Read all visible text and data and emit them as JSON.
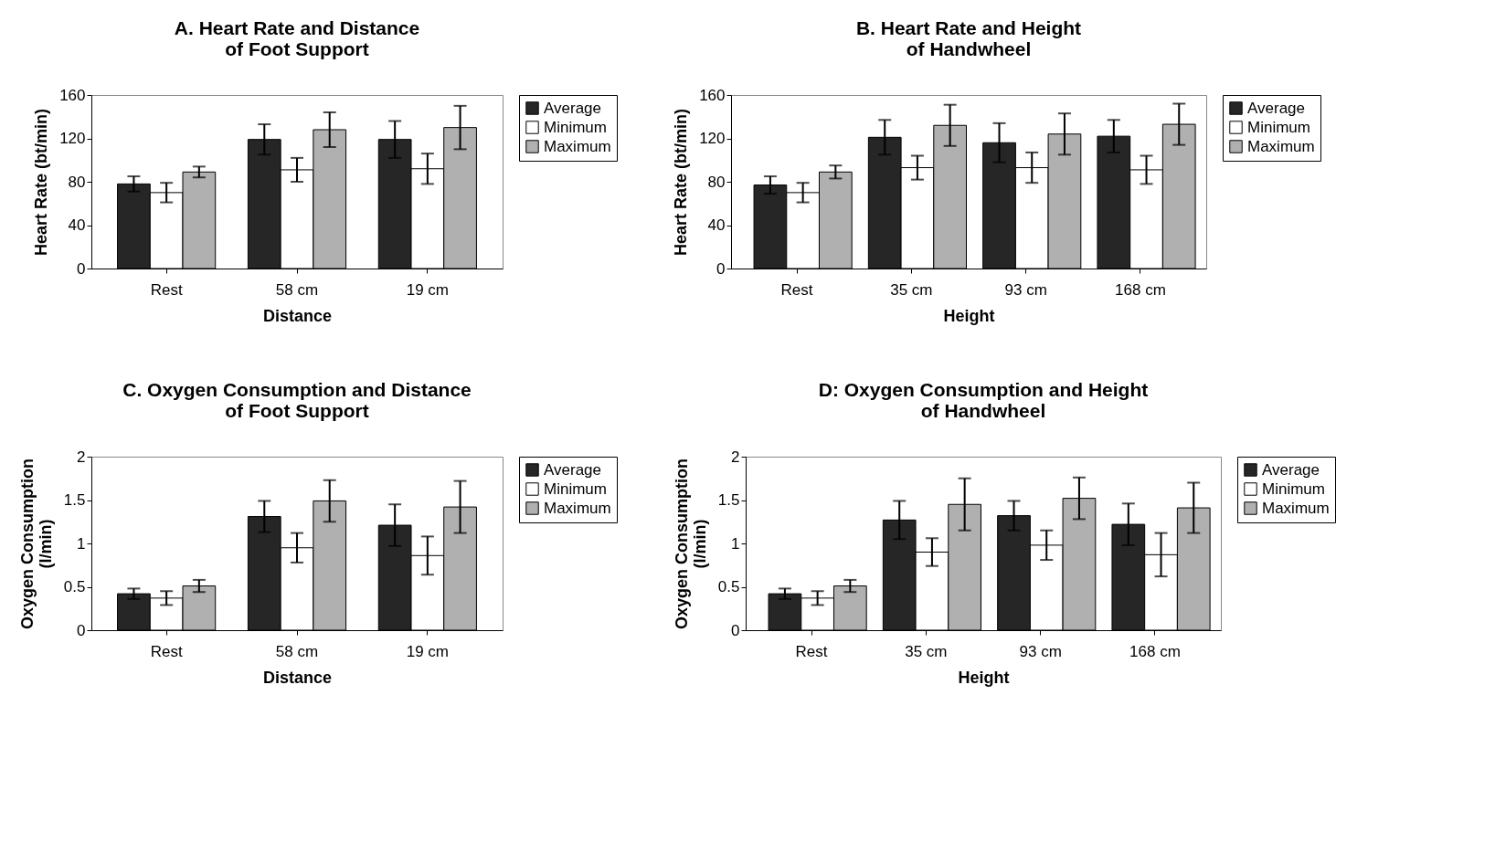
{
  "chart_data": [
    {
      "type": "bar",
      "title": "A. Heart Rate and Distance\nof Foot Support",
      "xlabel": "Distance",
      "ylabel": "Heart Rate (bt/min)",
      "categories": [
        "Rest",
        "58 cm",
        "19 cm"
      ],
      "ylim": [
        0,
        160
      ],
      "yticks": [
        0,
        40,
        80,
        120,
        160
      ],
      "legend": "right",
      "grid": false,
      "series": [
        {
          "name": "Average",
          "color": "#262626",
          "values": [
            78,
            119,
            119
          ],
          "errors": [
            7,
            14,
            17
          ]
        },
        {
          "name": "Minimum",
          "color": "#ffffff",
          "values": [
            70,
            91,
            92
          ],
          "errors": [
            9,
            11,
            14
          ]
        },
        {
          "name": "Maximum",
          "color": "#b0b0b0",
          "values": [
            89,
            128,
            130
          ],
          "errors": [
            5,
            16,
            20
          ]
        }
      ]
    },
    {
      "type": "bar",
      "title": "B. Heart Rate and Height\nof Handwheel",
      "xlabel": "Height",
      "ylabel": "Heart Rate (bt/min)",
      "categories": [
        "Rest",
        "35 cm",
        "93 cm",
        "168 cm"
      ],
      "ylim": [
        0,
        160
      ],
      "yticks": [
        0,
        40,
        80,
        120,
        160
      ],
      "legend": "right",
      "grid": false,
      "series": [
        {
          "name": "Average",
          "color": "#262626",
          "values": [
            77,
            121,
            116,
            122
          ],
          "errors": [
            8,
            16,
            18,
            15
          ]
        },
        {
          "name": "Minimum",
          "color": "#ffffff",
          "values": [
            70,
            93,
            93,
            91
          ],
          "errors": [
            9,
            11,
            14,
            13
          ]
        },
        {
          "name": "Maximum",
          "color": "#b0b0b0",
          "values": [
            89,
            132,
            124,
            133
          ],
          "errors": [
            6,
            19,
            19,
            19
          ]
        }
      ]
    },
    {
      "type": "bar",
      "title": "C. Oxygen Consumption and Distance\nof Foot Support",
      "xlabel": "Distance",
      "ylabel": "Oxygen Consumption\n(l/min)",
      "categories": [
        "Rest",
        "58 cm",
        "19 cm"
      ],
      "ylim": [
        0,
        2
      ],
      "yticks": [
        0,
        0.5,
        1,
        1.5,
        2
      ],
      "legend": "right",
      "grid": false,
      "series": [
        {
          "name": "Average",
          "color": "#262626",
          "values": [
            0.42,
            1.31,
            1.21
          ],
          "errors": [
            0.06,
            0.18,
            0.24
          ]
        },
        {
          "name": "Minimum",
          "color": "#ffffff",
          "values": [
            0.37,
            0.95,
            0.86
          ],
          "errors": [
            0.08,
            0.17,
            0.22
          ]
        },
        {
          "name": "Maximum",
          "color": "#b0b0b0",
          "values": [
            0.51,
            1.49,
            1.42
          ],
          "errors": [
            0.07,
            0.24,
            0.3
          ]
        }
      ]
    },
    {
      "type": "bar",
      "title": "D: Oxygen Consumption and Height\nof Handwheel",
      "xlabel": "Height",
      "ylabel": "Oxygen Consumption\n(l/min)",
      "categories": [
        "Rest",
        "35 cm",
        "93 cm",
        "168 cm"
      ],
      "ylim": [
        0,
        2
      ],
      "yticks": [
        0,
        0.5,
        1,
        1.5,
        2
      ],
      "legend": "right",
      "grid": false,
      "series": [
        {
          "name": "Average",
          "color": "#262626",
          "values": [
            0.42,
            1.27,
            1.32,
            1.22
          ],
          "errors": [
            0.06,
            0.22,
            0.17,
            0.24
          ]
        },
        {
          "name": "Minimum",
          "color": "#ffffff",
          "values": [
            0.37,
            0.9,
            0.98,
            0.87
          ],
          "errors": [
            0.08,
            0.16,
            0.17,
            0.25
          ]
        },
        {
          "name": "Maximum",
          "color": "#b0b0b0",
          "values": [
            0.51,
            1.45,
            1.52,
            1.41
          ],
          "errors": [
            0.07,
            0.3,
            0.24,
            0.29
          ]
        }
      ]
    }
  ]
}
